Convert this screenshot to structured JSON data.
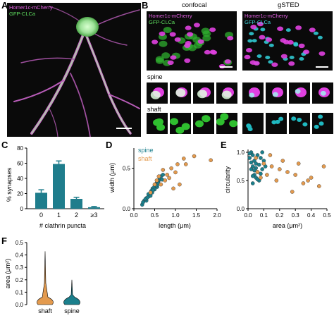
{
  "panels": {
    "A": {
      "letter": "A",
      "red_label": "Homer1c-mCherry",
      "green_label": "GFP-CLCa"
    },
    "B": {
      "letter": "B",
      "confocal_title": "confocal",
      "gsted_title": "gSTED",
      "conf_red": "Homer1c-mCherry",
      "conf_green": "GFP-CLCa",
      "sted_red": "Homer1c-mCherry",
      "sted_green": "GFP-CLCa",
      "spine_label": "spine",
      "shaft_label": "shaft"
    },
    "C": {
      "letter": "C"
    },
    "D": {
      "letter": "D",
      "legend_spine": "spine",
      "legend_shaft": "shaft"
    },
    "E": {
      "letter": "E"
    },
    "F": {
      "letter": "F"
    }
  },
  "colors": {
    "magenta": "#e040e0",
    "green": "#3ec23e",
    "cyan": "#1b7f8c",
    "orange": "#e39a4e",
    "bar": "#1f7d8c"
  },
  "chart_data": [
    {
      "panel": "C",
      "type": "bar",
      "categories": [
        "0",
        "1",
        "2",
        "≥3"
      ],
      "values": [
        21,
        59,
        13,
        2
      ],
      "errors": [
        4,
        4,
        2,
        1
      ],
      "xlabel": "# clathrin puncta",
      "ylabel": "% synapses",
      "ylim": [
        0,
        80
      ],
      "yticks": [
        "0",
        "20",
        "40",
        "60",
        "80"
      ]
    },
    {
      "panel": "D",
      "type": "scatter",
      "xlabel": "length (μm)",
      "ylabel": "width (μm)",
      "xlim": [
        0,
        2.0
      ],
      "ylim": [
        0,
        0.75
      ],
      "xticks": [
        "0.0",
        "0.5",
        "1.0",
        "1.5",
        "2.0"
      ],
      "yticks": [
        "0.0",
        "0.5"
      ],
      "series": [
        {
          "name": "spine",
          "color": "#1b7f8c",
          "points": [
            [
              0.2,
              0.05
            ],
            [
              0.25,
              0.1
            ],
            [
              0.3,
              0.13
            ],
            [
              0.35,
              0.15
            ],
            [
              0.4,
              0.2
            ],
            [
              0.45,
              0.25
            ],
            [
              0.5,
              0.28
            ],
            [
              0.55,
              0.32
            ],
            [
              0.6,
              0.35
            ],
            [
              0.3,
              0.1
            ],
            [
              0.38,
              0.17
            ],
            [
              0.42,
              0.22
            ],
            [
              0.48,
              0.26
            ],
            [
              0.52,
              0.3
            ],
            [
              0.58,
              0.33
            ],
            [
              0.62,
              0.38
            ],
            [
              0.65,
              0.4
            ],
            [
              0.7,
              0.42
            ],
            [
              0.22,
              0.08
            ],
            [
              0.28,
              0.12
            ],
            [
              0.33,
              0.14
            ],
            [
              0.44,
              0.2
            ],
            [
              0.5,
              0.24
            ],
            [
              0.56,
              0.27
            ],
            [
              0.35,
              0.18
            ],
            [
              0.4,
              0.16
            ],
            [
              0.46,
              0.23
            ],
            [
              0.54,
              0.29
            ],
            [
              0.6,
              0.31
            ],
            [
              0.68,
              0.36
            ]
          ]
        },
        {
          "name": "shaft",
          "color": "#e39a4e",
          "points": [
            [
              0.6,
              0.4
            ],
            [
              0.7,
              0.48
            ],
            [
              0.75,
              0.35
            ],
            [
              0.8,
              0.42
            ],
            [
              0.85,
              0.38
            ],
            [
              0.9,
              0.5
            ],
            [
              1.0,
              0.45
            ],
            [
              1.05,
              0.55
            ],
            [
              1.1,
              0.3
            ],
            [
              1.2,
              0.62
            ],
            [
              1.25,
              0.55
            ],
            [
              0.5,
              0.3
            ],
            [
              0.55,
              0.35
            ],
            [
              0.95,
              0.25
            ],
            [
              1.85,
              0.6
            ],
            [
              1.45,
              0.65
            ],
            [
              0.4,
              0.2
            ],
            [
              0.65,
              0.3
            ]
          ]
        }
      ]
    },
    {
      "panel": "E",
      "type": "scatter",
      "xlabel": "area (μm²)",
      "ylabel": "circularity",
      "xlim": [
        0,
        0.5
      ],
      "ylim": [
        0,
        1.05
      ],
      "xticks": [
        "0.0",
        "0.1",
        "0.2",
        "0.3",
        "0.4",
        "0.5"
      ],
      "yticks": [
        "0.0",
        "0.5",
        "1.0"
      ],
      "series": [
        {
          "name": "spine",
          "color": "#1b7f8c",
          "points": [
            [
              0.02,
              1.0
            ],
            [
              0.03,
              0.95
            ],
            [
              0.01,
              0.9
            ],
            [
              0.04,
              0.85
            ],
            [
              0.05,
              0.8
            ],
            [
              0.03,
              0.75
            ],
            [
              0.02,
              0.7
            ],
            [
              0.06,
              0.65
            ],
            [
              0.04,
              0.6
            ],
            [
              0.05,
              0.55
            ],
            [
              0.07,
              0.5
            ],
            [
              0.03,
              0.45
            ],
            [
              0.08,
              0.9
            ],
            [
              0.09,
              1.0
            ],
            [
              0.1,
              0.85
            ],
            [
              0.06,
              0.95
            ],
            [
              0.02,
              0.82
            ],
            [
              0.05,
              0.72
            ],
            [
              0.07,
              0.78
            ],
            [
              0.04,
              0.68
            ],
            [
              0.03,
              0.58
            ],
            [
              0.06,
              0.52
            ],
            [
              0.08,
              0.62
            ],
            [
              0.01,
              0.98
            ],
            [
              0.09,
              0.7
            ],
            [
              0.11,
              0.75
            ]
          ]
        },
        {
          "name": "shaft",
          "color": "#e39a4e",
          "points": [
            [
              0.05,
              0.9
            ],
            [
              0.1,
              0.8
            ],
            [
              0.15,
              0.75
            ],
            [
              0.12,
              0.6
            ],
            [
              0.18,
              0.5
            ],
            [
              0.2,
              0.7
            ],
            [
              0.25,
              0.65
            ],
            [
              0.3,
              0.6
            ],
            [
              0.35,
              0.45
            ],
            [
              0.4,
              0.55
            ],
            [
              0.45,
              0.4
            ],
            [
              0.48,
              0.75
            ],
            [
              0.22,
              0.85
            ],
            [
              0.28,
              0.3
            ],
            [
              0.14,
              0.95
            ],
            [
              0.08,
              0.55
            ],
            [
              0.06,
              0.65
            ],
            [
              0.32,
              0.8
            ],
            [
              0.38,
              0.5
            ]
          ]
        }
      ]
    },
    {
      "panel": "F",
      "type": "violin",
      "categories": [
        "shaft",
        "spine"
      ],
      "colors": [
        "#e39a4e",
        "#1b7f8c"
      ],
      "ylabel": "area (μm²)",
      "ylim": [
        0,
        0.5
      ],
      "yticks": [
        "0.0",
        "0.1",
        "0.2",
        "0.3",
        "0.4",
        "0.5"
      ],
      "max_values": [
        0.43,
        0.2
      ]
    }
  ]
}
